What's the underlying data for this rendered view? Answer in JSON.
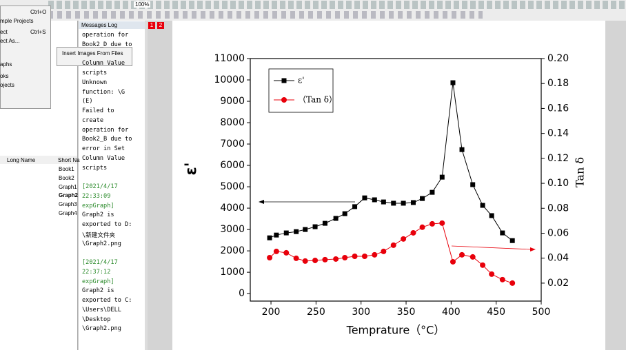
{
  "toolbar": {
    "zoom": "100%"
  },
  "menu": {
    "items": [
      {
        "shortcut": "Ctrl+O"
      },
      {
        "label": "mple Projects"
      },
      {
        "label": "ect",
        "shortcut": "Ctrl+S"
      },
      {
        "label": "ect As..."
      },
      {
        "label": "aphs"
      },
      {
        "label": "oks"
      },
      {
        "label": "ojects"
      }
    ],
    "submenu": "Insert Images From Files"
  },
  "explorer": {
    "columns": [
      "Long Name",
      "Short Na"
    ],
    "items": [
      "Book1",
      "Book2",
      "Graph1",
      "Graph2",
      "Graph3",
      "Graph4"
    ]
  },
  "messages": {
    "title": "Messages Log",
    "blocks": [
      {
        "lines": [
          "operation for",
          "Book2_D due to",
          "Column Value",
          "scripts",
          "Unknown",
          "function: \\G",
          "(E)",
          "Failed to",
          "create",
          "operation for",
          "Book2_B due to",
          "error in Set",
          "Column Value",
          "scripts"
        ]
      },
      {
        "header": [
          "[2021/4/17",
          "22:33:09",
          "expGraph]"
        ],
        "lines": [
          "Graph2 is",
          "exported to D:",
          "\\新建文件夹",
          "\\Graph2.png"
        ]
      },
      {
        "header": [
          "[2021/4/17",
          "22:37:12",
          "expGraph]"
        ],
        "lines": [
          "Graph2 is",
          "exported to C:",
          "\\Users\\DELL",
          "\\Desktop",
          "\\Graph2.png"
        ]
      }
    ]
  },
  "layers": [
    "1",
    "2"
  ],
  "chart_data": {
    "type": "line",
    "x_label": "Temprature（°C）",
    "y_label": "ε'",
    "y2_label": "Tan δ",
    "xlim": [
      177,
      500
    ],
    "xticks": [
      200,
      250,
      300,
      350,
      400,
      450,
      500
    ],
    "ylim": [
      -350,
      11000
    ],
    "yticks": [
      0,
      1000,
      2000,
      3000,
      4000,
      5000,
      6000,
      7000,
      8000,
      9000,
      10000,
      11000
    ],
    "y2lim": [
      0.0056,
      0.2
    ],
    "y2ticks": [
      0.02,
      0.04,
      0.06,
      0.08,
      {
        "value": 0.1,
        "label": "0.10"
      },
      0.12,
      0.14,
      0.16,
      0.18,
      {
        "value": 0.2,
        "label": "0.20"
      }
    ],
    "x": [
      198.5,
      206,
      217,
      228,
      238,
      249,
      260,
      272,
      282,
      293,
      304,
      315,
      325,
      336,
      347,
      358,
      368,
      379,
      390,
      402,
      412,
      424,
      435,
      445,
      457,
      468
    ],
    "series": [
      {
        "name": "ε'",
        "color": "#000000",
        "marker": "square",
        "values": [
          2610,
          2740,
          2840,
          2900,
          3000,
          3130,
          3290,
          3520,
          3740,
          4070,
          4480,
          4390,
          4290,
          4230,
          4230,
          4260,
          4450,
          4740,
          5450,
          9870,
          6740,
          5100,
          4130,
          3650,
          2840,
          2480
        ]
      },
      {
        "name": "（Tan δ）",
        "color": "#e8000b",
        "marker": "circle",
        "axis": "y2",
        "values": [
          0.0404,
          0.0454,
          0.0443,
          0.0399,
          0.0377,
          0.0382,
          0.0388,
          0.0393,
          0.0404,
          0.0415,
          0.0415,
          0.0427,
          0.0454,
          0.0504,
          0.0554,
          0.0603,
          0.0648,
          0.0675,
          0.0681,
          0.0371,
          0.0427,
          0.041,
          0.0344,
          0.0272,
          0.0228,
          0.02
        ]
      }
    ],
    "legend": "upper-left"
  }
}
